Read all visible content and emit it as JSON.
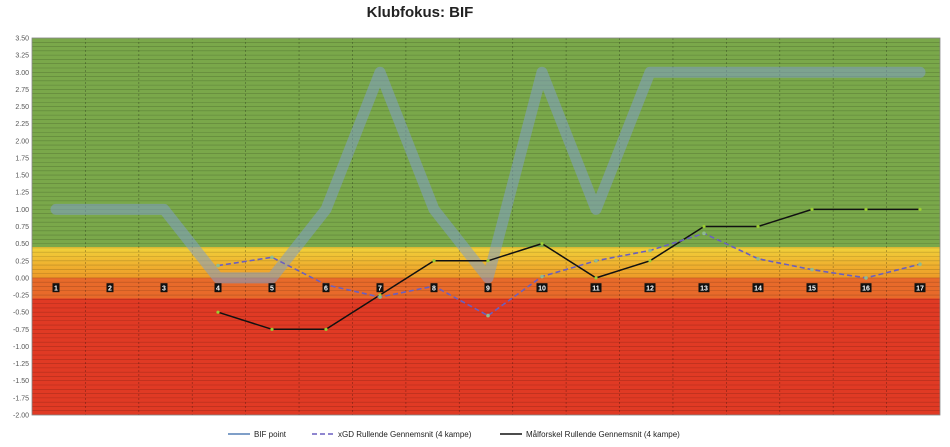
{
  "chart_data": {
    "type": "line",
    "title": "Klubfokus:  BIF",
    "xlabel": "",
    "ylabel": "",
    "categories": [
      "1",
      "2",
      "3",
      "4",
      "5",
      "6",
      "7",
      "8",
      "9",
      "10",
      "11",
      "12",
      "13",
      "14",
      "15",
      "16",
      "17"
    ],
    "ylim": [
      -2.0,
      3.5
    ],
    "yticks": [
      "3.50",
      "3.25",
      "3.00",
      "2.75",
      "2.50",
      "2.25",
      "2.00",
      "1.75",
      "1.50",
      "1.25",
      "1.00",
      "0.75",
      "0.50",
      "0.25",
      "0.00",
      "-0.25",
      "-0.50",
      "-0.75",
      "-1.00",
      "-1.25",
      "-1.50",
      "-1.75",
      "-2.00"
    ],
    "grid": true,
    "legend_position": "bottom",
    "zones": [
      {
        "from": 0.45,
        "to": 3.5,
        "color": "#7aa84a"
      },
      {
        "from": 0.0,
        "to": 0.45,
        "color": "#f0b030"
      },
      {
        "from": -2.0,
        "to": -0.3,
        "color": "#e03a24"
      }
    ],
    "series": [
      {
        "name": "BIF point",
        "color": "#7f9fc8",
        "values": [
          1,
          1,
          1,
          0,
          0,
          1,
          3,
          1,
          0,
          3,
          1,
          3,
          3,
          3,
          3,
          3,
          3
        ]
      },
      {
        "name": "xGD Rullende Gennemsnit (4 kampe)",
        "color": "#6a5fc0",
        "values": [
          null,
          null,
          null,
          0.18,
          0.3,
          -0.1,
          -0.28,
          -0.12,
          -0.55,
          0.02,
          0.25,
          0.4,
          0.65,
          0.28,
          0.12,
          0.0,
          0.2
        ]
      },
      {
        "name": "Målforskel Rullende Gennemsnit (4 kampe)",
        "color": "#111111",
        "values": [
          null,
          null,
          null,
          -0.5,
          -0.75,
          -0.75,
          -0.25,
          0.25,
          0.25,
          0.5,
          0.0,
          0.25,
          0.75,
          0.75,
          1.0,
          1.0,
          1.0
        ]
      }
    ]
  }
}
